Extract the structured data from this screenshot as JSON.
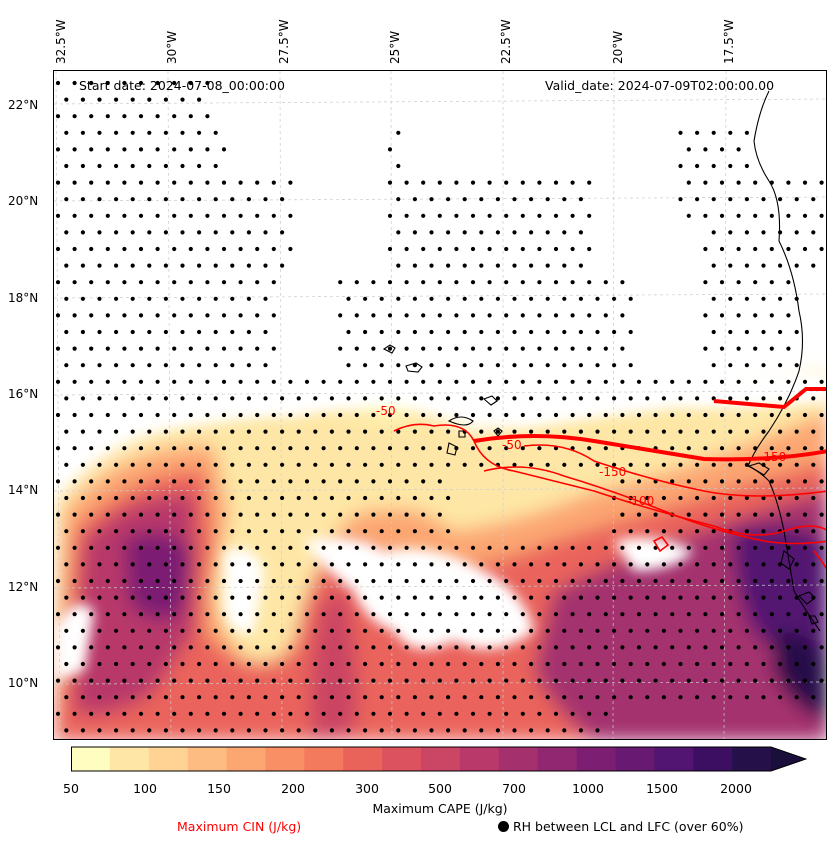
{
  "map": {
    "start_date": "Start date: 2024-07-08_00:00:00",
    "valid_date": "Valid_date: 2024-07-09T02:00:00.00",
    "lon_labels": [
      "32.5°W",
      "30°W",
      "27.5°W",
      "25°W",
      "22.5°W",
      "20°W",
      "17.5°W"
    ],
    "lat_labels": [
      "22°N",
      "20°N",
      "18°N",
      "16°N",
      "14°N",
      "12°N",
      "10°N"
    ],
    "cin_labels": [
      "-50",
      "-50",
      "-150",
      "-100",
      "-150"
    ],
    "colors": {
      "cin_contour": "#ff0000",
      "coastline": "#000000",
      "rh_dot": "#000000"
    }
  },
  "colorbar": {
    "title": "Maximum CAPE (J/kg)",
    "ticks": [
      "50",
      "100",
      "150",
      "200",
      "300",
      "500",
      "700",
      "1000",
      "1500",
      "2000"
    ],
    "colors": [
      "#fffdbf",
      "#fee7a6",
      "#fed394",
      "#fdbd82",
      "#fca672",
      "#f98f65",
      "#f47a5e",
      "#ea635b",
      "#dd525f",
      "#cb4564",
      "#b8396a",
      "#a4306e",
      "#902770",
      "#7c1f72",
      "#681a73",
      "#521571",
      "#3c0f63",
      "#251049",
      "#1a0e3b"
    ]
  },
  "legend": {
    "cin": "Maximum CIN (J/kg)",
    "rh": "RH between LCL and LFC (over 60%)"
  }
}
